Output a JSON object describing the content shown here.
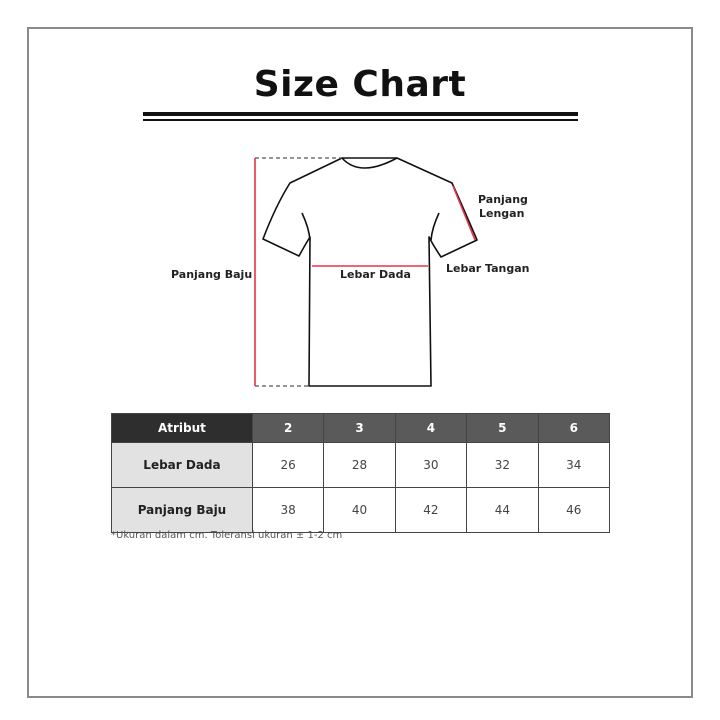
{
  "title": "Size Chart",
  "diagram": {
    "labels": {
      "panjang_baju": "Panjang Baju",
      "lebar_dada": "Lebar Dada",
      "lebar_tangan": "Lebar Tangan",
      "panjang_lengan_1": "Panjang",
      "panjang_lengan_2": "Lengan"
    },
    "measure_color": "#e8334a"
  },
  "table": {
    "headers": [
      "Atribut",
      "2",
      "3",
      "4",
      "5",
      "6"
    ],
    "rows": [
      {
        "label": "Lebar Dada",
        "values": [
          "26",
          "28",
          "30",
          "32",
          "34"
        ]
      },
      {
        "label": "Panjang Baju",
        "values": [
          "38",
          "40",
          "42",
          "44",
          "46"
        ]
      }
    ]
  },
  "note": "*Ukuran dalam cm. Toleransi ukuran ± 1-2 cm"
}
